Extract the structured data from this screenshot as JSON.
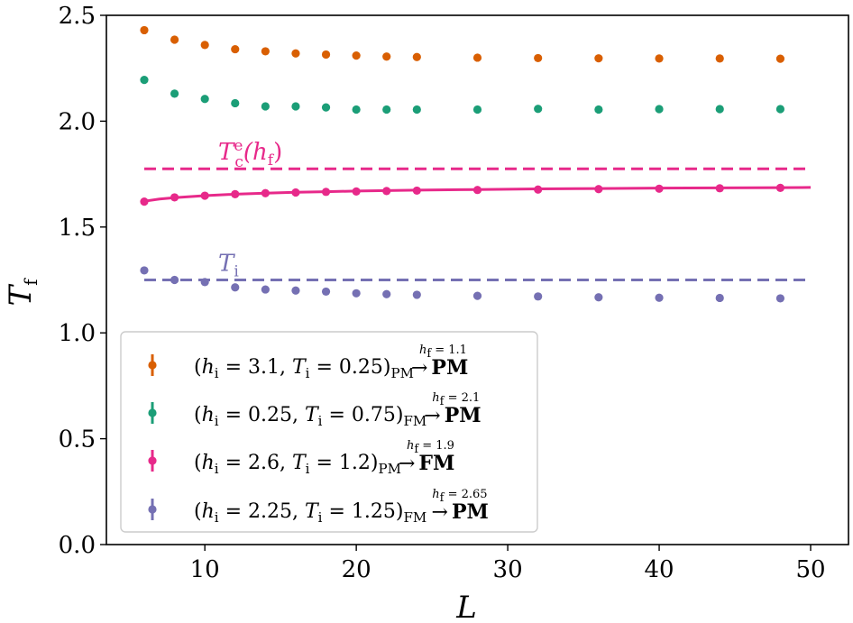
{
  "chart_data": {
    "type": "scatter",
    "title": "",
    "xlabel": "L",
    "ylabel": "T",
    "ylabel_sub": "f",
    "xlim": [
      3.5,
      52.5
    ],
    "ylim": [
      0.0,
      2.5
    ],
    "xticks": [
      10,
      20,
      30,
      40,
      50
    ],
    "xtick_labels": [
      "10",
      "20",
      "30",
      "40",
      "50"
    ],
    "yticks": [
      0.0,
      0.5,
      1.0,
      1.5,
      2.0,
      2.5
    ],
    "ytick_labels": [
      "0.0",
      "0.5",
      "1.0",
      "1.5",
      "2.0",
      "2.5"
    ],
    "grid": false,
    "legend_position": "lower-left",
    "x": [
      6,
      8,
      10,
      12,
      14,
      16,
      18,
      20,
      22,
      24,
      28,
      32,
      36,
      40,
      44,
      48
    ],
    "series": [
      {
        "name": "(h_i=3.1, T_i=0.25)_PM -> PM (h_f=1.1)",
        "color": "#d95f02",
        "label_main": "(",
        "label_parts": [
          "h",
          "i",
          " = 3.1, ",
          "T",
          "i",
          " = 0.25)",
          "PM"
        ],
        "arrow_over": "h",
        "arrow_over_sub": "f",
        "arrow_over_val": " = 1.1",
        "arrow": "→",
        "target": "PM",
        "values": [
          2.43,
          2.385,
          2.36,
          2.34,
          2.33,
          2.32,
          2.315,
          2.31,
          2.305,
          2.303,
          2.3,
          2.298,
          2.297,
          2.296,
          2.296,
          2.295
        ]
      },
      {
        "name": "(h_i=0.25, T_i=0.75)_FM -> PM (h_f=2.1)",
        "color": "#1b9e77",
        "label_main": "(",
        "label_parts": [
          "h",
          "i",
          " = 0.25, ",
          "T",
          "i",
          " = 0.75)",
          "FM"
        ],
        "arrow_over": "h",
        "arrow_over_sub": "f",
        "arrow_over_val": " = 2.1",
        "arrow": "→",
        "target": "PM",
        "values": [
          2.195,
          2.13,
          2.105,
          2.085,
          2.07,
          2.07,
          2.065,
          2.055,
          2.055,
          2.055,
          2.055,
          2.058,
          2.055,
          2.057,
          2.057,
          2.057
        ]
      },
      {
        "name": "(h_i=2.6, T_i=1.2)_PM -> FM (h_f=1.9)",
        "color": "#e7298a",
        "label_main": "(",
        "label_parts": [
          "h",
          "i",
          " = 2.6, ",
          "T",
          "i",
          " = 1.2)",
          "PM"
        ],
        "arrow_over": "h",
        "arrow_over_sub": "f",
        "arrow_over_val": " = 1.9",
        "arrow": "→",
        "target": "FM",
        "values": [
          1.62,
          1.64,
          1.648,
          1.655,
          1.66,
          1.663,
          1.666,
          1.668,
          1.67,
          1.672,
          1.675,
          1.677,
          1.679,
          1.681,
          1.683,
          1.685
        ]
      },
      {
        "name": "(h_i=2.25, T_i=1.25)_FM -> PM (h_f=2.65)",
        "color": "#7570b3",
        "label_main": "(",
        "label_parts": [
          "h",
          "i",
          " = 2.25, ",
          "T",
          "i",
          " = 1.25)",
          "FM"
        ],
        "arrow_over": "h",
        "arrow_over_sub": "f",
        "arrow_over_val": " = 2.65",
        "arrow": "→",
        "target": "PM",
        "values": [
          1.295,
          1.25,
          1.24,
          1.215,
          1.205,
          1.2,
          1.195,
          1.187,
          1.183,
          1.18,
          1.175,
          1.172,
          1.168,
          1.166,
          1.165,
          1.163
        ]
      }
    ],
    "fit_curve": {
      "color": "#e7298a",
      "x": [
        6,
        7,
        8,
        10,
        12,
        14,
        16,
        18,
        20,
        24,
        28,
        32,
        36,
        40,
        44,
        48,
        50
      ],
      "y": [
        1.622,
        1.632,
        1.639,
        1.648,
        1.655,
        1.66,
        1.664,
        1.667,
        1.67,
        1.674,
        1.677,
        1.68,
        1.682,
        1.684,
        1.685,
        1.686,
        1.687
      ]
    },
    "reference_lines": [
      {
        "name": "Tc^e(h_f)",
        "y": 1.775,
        "x_range": [
          6,
          50
        ],
        "color": "#e7298a",
        "style": "dashed",
        "label_base": "T",
        "label_sub": "c",
        "label_sup": "e",
        "label_rest": "(h",
        "label_rest_sub": "f",
        "label_close": ")",
        "label_x": 11
      },
      {
        "name": "T_i",
        "y": 1.25,
        "x_range": [
          6,
          50
        ],
        "color": "#7570b3",
        "style": "dashed",
        "label_base": "T",
        "label_sub": "i",
        "label_x": 11
      }
    ]
  }
}
